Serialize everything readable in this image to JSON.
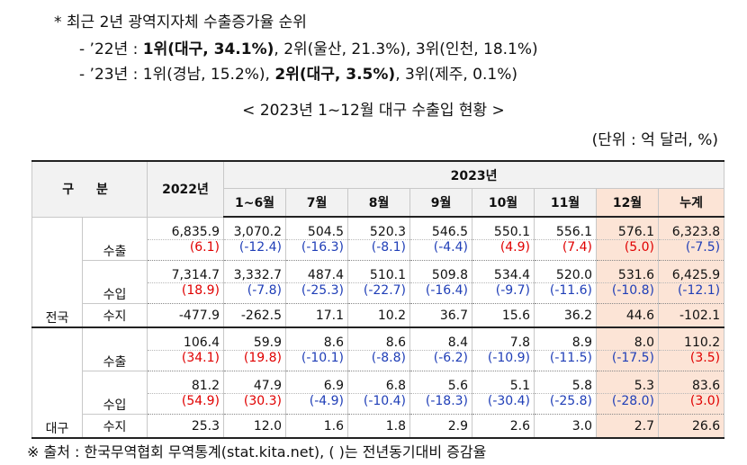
{
  "notes": {
    "line1": "* 최근 2년 광역지자체 수출증가율 순위",
    "line2": {
      "prefix": "- ’22년 : ",
      "bold": "1위(대구, 34.1%)",
      "rest": ", 2위(울산, 21.3%), 3위(인천, 18.1%)"
    },
    "line3": {
      "prefix": "- ’23년 : 1위(경남, 15.2%), ",
      "bold": "2위(대구, 3.5%)",
      "rest": ", 3위(제주, 0.1%)"
    }
  },
  "table_title": "< 2023년 1~12월 대구 수출입 현황 >",
  "unit_label": "(단위 : 억 달러, %)",
  "header": {
    "gubun": "구 분",
    "y2022": "2022년",
    "y2023": "2023년",
    "periods": [
      "1~6월",
      "7월",
      "8월",
      "9월",
      "10월",
      "11월",
      "12월",
      "누계"
    ]
  },
  "regions": [
    {
      "name": "전국",
      "rows": [
        {
          "item": "수출",
          "values": [
            "6,835.9",
            "3,070.2",
            "504.5",
            "520.3",
            "546.5",
            "550.1",
            "556.1",
            "576.1",
            "6,323.8"
          ],
          "changes": [
            "(6.1)",
            "(-12.4)",
            "(-16.3)",
            "(-8.1)",
            "(-4.4)",
            "(4.9)",
            "(7.4)",
            "(5.0)",
            "(-7.5)"
          ]
        },
        {
          "item": "수입",
          "values": [
            "7,314.7",
            "3,332.7",
            "487.4",
            "510.1",
            "509.8",
            "534.4",
            "520.0",
            "531.6",
            "6,425.9"
          ],
          "changes": [
            "(18.9)",
            "(-7.8)",
            "(-25.3)",
            "(-22.7)",
            "(-16.4)",
            "(-9.7)",
            "(-11.6)",
            "(-10.8)",
            "(-12.1)"
          ]
        },
        {
          "item": "수지",
          "values": [
            "-477.9",
            "-262.5",
            "17.1",
            "10.2",
            "36.7",
            "15.6",
            "36.2",
            "44.6",
            "-102.1"
          ]
        }
      ]
    },
    {
      "name": "대구",
      "rows": [
        {
          "item": "수출",
          "values": [
            "106.4",
            "59.9",
            "8.6",
            "8.6",
            "8.4",
            "7.8",
            "8.9",
            "8.0",
            "110.2"
          ],
          "changes": [
            "(34.1)",
            "(19.8)",
            "(-10.1)",
            "(-8.8)",
            "(-6.2)",
            "(-10.9)",
            "(-11.5)",
            "(-17.5)",
            "(3.5)"
          ]
        },
        {
          "item": "수입",
          "values": [
            "81.2",
            "47.9",
            "6.9",
            "6.8",
            "5.6",
            "5.1",
            "5.8",
            "5.3",
            "83.6"
          ],
          "changes": [
            "(54.9)",
            "(30.3)",
            "(-4.9)",
            "(-10.4)",
            "(-18.3)",
            "(-30.4)",
            "(-25.8)",
            "(-28.0)",
            "(3.0)"
          ]
        },
        {
          "item": "수지",
          "values": [
            "25.3",
            "12.0",
            "1.6",
            "1.8",
            "2.9",
            "2.6",
            "3.0",
            "2.7",
            "26.6"
          ]
        }
      ]
    }
  ],
  "colors": {
    "positive_change": "#e00000",
    "negative_change": "#1f3eb7",
    "highlight": "#fce4d6",
    "header_bg": "#f2f2f2"
  },
  "footnote": "※ 출처 : 한국무역협회 무역통계(stat.kita.net), (   )는 전년동기대비 증감율"
}
